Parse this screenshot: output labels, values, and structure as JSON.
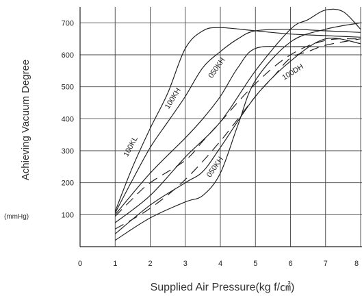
{
  "chart_data": {
    "type": "line",
    "xlabel": "Supplied Air Pressure(kg f/㎠)",
    "ylabel": "Achieving Vacuum Degree",
    "yunit": "(mmHg)",
    "xlim": [
      0,
      8
    ],
    "ylim": [
      0,
      750
    ],
    "xticks": [
      "0",
      "1",
      "2",
      "3",
      "4",
      "5",
      "6",
      "7",
      "8"
    ],
    "yticks": [
      "100",
      "200",
      "300",
      "400",
      "500",
      "600",
      "700"
    ],
    "grid": true,
    "series": [
      {
        "name": "100KL",
        "style": "solid",
        "x": [
          1.0,
          1.5,
          2.0,
          2.5,
          3.0,
          3.5,
          4.0,
          5.0,
          6.0,
          7.0,
          8.0
        ],
        "y": [
          110,
          250,
          370,
          480,
          620,
          675,
          685,
          675,
          665,
          660,
          655
        ]
      },
      {
        "name": "100KH",
        "style": "solid",
        "x": [
          1.0,
          1.5,
          2.0,
          2.5,
          3.0,
          3.5,
          4.0,
          4.5,
          5.0,
          6.0,
          7.0,
          8.0
        ],
        "y": [
          105,
          210,
          310,
          390,
          470,
          560,
          610,
          650,
          675,
          680,
          675,
          670
        ]
      },
      {
        "name": "050KH",
        "style": "solid",
        "x": [
          1.0,
          2.0,
          3.0,
          3.5,
          4.0,
          4.5,
          5.0,
          6.0,
          7.0,
          8.0
        ],
        "y": [
          100,
          230,
          340,
          400,
          470,
          560,
          620,
          625,
          625,
          625
        ]
      },
      {
        "name": "100DH",
        "style": "solid",
        "x": [
          1.0,
          2.0,
          3.0,
          4.0,
          5.0,
          6.0,
          6.5,
          7.0,
          7.5,
          8.0
        ],
        "y": [
          75,
          160,
          280,
          390,
          550,
          680,
          710,
          740,
          735,
          680
        ]
      },
      {
        "name": "050KH",
        "style": "solid",
        "x": [
          1.0,
          2.0,
          3.0,
          3.5,
          4.0,
          5.0,
          6.0,
          7.0,
          8.0
        ],
        "y": [
          40,
          130,
          200,
          235,
          310,
          470,
          580,
          650,
          635
        ]
      },
      {
        "name": "",
        "style": "solid",
        "x": [
          1.0,
          2.0,
          3.0,
          3.5,
          4.0,
          4.5,
          5.0,
          6.0,
          7.0,
          8.0
        ],
        "y": [
          20,
          90,
          140,
          160,
          230,
          380,
          520,
          640,
          680,
          700
        ]
      },
      {
        "name": "",
        "style": "dashed",
        "x": [
          1.0,
          1.5,
          2.0,
          3.0,
          3.5,
          4.0,
          5.0,
          6.0,
          7.0,
          8.0
        ],
        "y": [
          95,
          150,
          200,
          270,
          330,
          390,
          510,
          600,
          645,
          650
        ]
      },
      {
        "name": "",
        "style": "dashed",
        "x": [
          1.0,
          2.0,
          3.0,
          4.0,
          5.0,
          5.5,
          6.0,
          6.5,
          7.0,
          8.0
        ],
        "y": [
          55,
          120,
          210,
          330,
          470,
          530,
          590,
          610,
          630,
          650
        ]
      }
    ],
    "annotations": [
      {
        "text": "100KL",
        "x": 1.5,
        "y": 310,
        "angle": -62
      },
      {
        "text": "100KH",
        "x": 2.7,
        "y": 460,
        "angle": -58
      },
      {
        "text": "050KH",
        "x": 3.95,
        "y": 555,
        "angle": -55
      },
      {
        "text": "100DH",
        "x": 6.1,
        "y": 540,
        "angle": -32
      },
      {
        "text": "050KH",
        "x": 3.9,
        "y": 245,
        "angle": -55
      }
    ]
  }
}
